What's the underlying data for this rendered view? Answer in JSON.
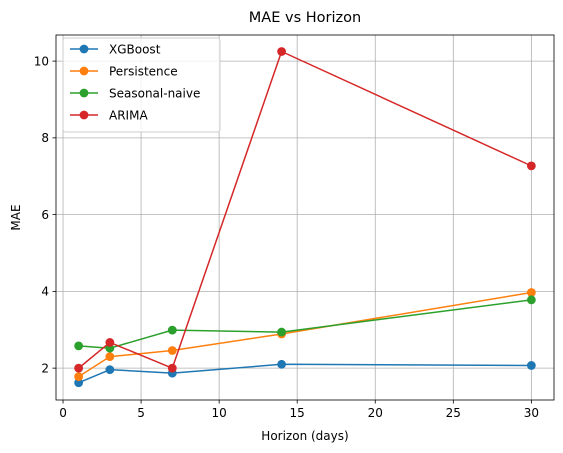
{
  "chart_data": {
    "type": "line",
    "title": "MAE vs Horizon",
    "xlabel": "Horizon (days)",
    "ylabel": "MAE",
    "x": [
      1,
      3,
      7,
      14,
      30
    ],
    "xlim": [
      -0.45,
      31.45
    ],
    "ylim": [
      1.17,
      10.68
    ],
    "xticks": [
      0,
      5,
      10,
      15,
      20,
      25,
      30
    ],
    "yticks": [
      2,
      4,
      6,
      8,
      10
    ],
    "grid": true,
    "legend_position": "top-left",
    "series": [
      {
        "name": "XGBoost",
        "color": "#1f77b4",
        "values": [
          1.62,
          1.96,
          1.87,
          2.1,
          2.07
        ]
      },
      {
        "name": "Persistence",
        "color": "#ff7f0e",
        "values": [
          1.78,
          2.3,
          2.46,
          2.89,
          3.97
        ]
      },
      {
        "name": "Seasonal-naive",
        "color": "#2ca02c",
        "values": [
          2.58,
          2.52,
          2.99,
          2.94,
          3.78
        ]
      },
      {
        "name": "ARIMA",
        "color": "#d62728",
        "values": [
          2.0,
          2.67,
          2.0,
          10.25,
          7.27
        ]
      }
    ]
  }
}
